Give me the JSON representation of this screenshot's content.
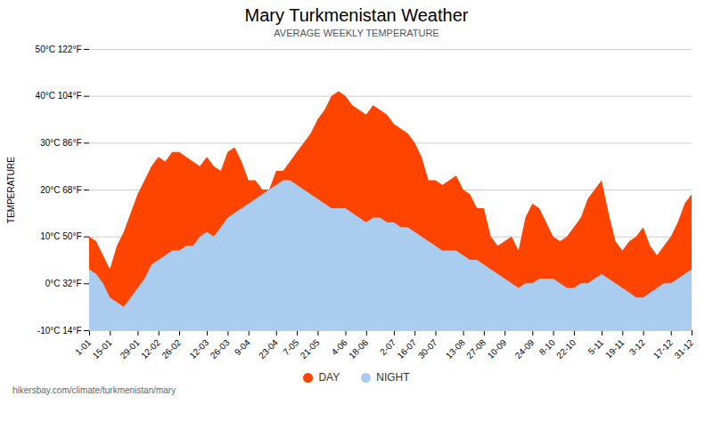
{
  "chart_data": {
    "type": "area",
    "title": "Mary Turkmenistan Weather",
    "subtitle": "AVERAGE WEEKLY TEMPERATURE",
    "ylabel": "TEMPERATURE",
    "footer": "hikersbay.com/climate/turkmenistan/mary",
    "categories": [
      "1-01",
      null,
      null,
      "15-01",
      null,
      null,
      null,
      "29-01",
      null,
      null,
      "12-02",
      null,
      null,
      "26-02",
      null,
      null,
      null,
      "12-03",
      null,
      null,
      "26-03",
      null,
      null,
      "9-04",
      null,
      null,
      null,
      "23-04",
      null,
      null,
      "7-05",
      null,
      null,
      "21-05",
      null,
      null,
      null,
      "4-06",
      null,
      null,
      "18-06",
      null,
      null,
      null,
      "2-07",
      null,
      null,
      "16-07",
      null,
      null,
      "30-07",
      null,
      null,
      null,
      "13-08",
      null,
      null,
      "27-08",
      null,
      null,
      "10-09",
      null,
      null,
      null,
      "24-09",
      null,
      null,
      "8-10",
      null,
      null,
      "22-10",
      null,
      null,
      null,
      "5-11",
      null,
      null,
      "19-11",
      null,
      null,
      "3-12",
      null,
      null,
      null,
      "17-12",
      null,
      null,
      "31-12"
    ],
    "series": [
      {
        "name": "DAY",
        "color": "#ff4400",
        "values": [
          10,
          9,
          6,
          3,
          8,
          11,
          15,
          19,
          22,
          25,
          27,
          26,
          28,
          28,
          27,
          26,
          25,
          27,
          25,
          24,
          28,
          29,
          26,
          22,
          22,
          20,
          20,
          24,
          24,
          26,
          28,
          30,
          32,
          35,
          37,
          40,
          41,
          40,
          38,
          37,
          36,
          38,
          37,
          36,
          34,
          33,
          32,
          30,
          27,
          22,
          22,
          21,
          22,
          23,
          20,
          19,
          16,
          16,
          10,
          8,
          9,
          10,
          7,
          14,
          17,
          16,
          13,
          10,
          9,
          10,
          12,
          14,
          18,
          20,
          22,
          15,
          9,
          7,
          9,
          10,
          12,
          8,
          6,
          8,
          10,
          13,
          17,
          19
        ]
      },
      {
        "name": "NIGHT",
        "color": "#aaccee",
        "values": [
          3,
          2,
          0,
          -3,
          -4,
          -5,
          -3,
          -1,
          1,
          4,
          5,
          6,
          7,
          7,
          8,
          8,
          10,
          11,
          10,
          12,
          14,
          15,
          16,
          17,
          18,
          19,
          20,
          21,
          22,
          22,
          21,
          20,
          19,
          18,
          17,
          16,
          16,
          16,
          15,
          14,
          13,
          14,
          14,
          13,
          13,
          12,
          12,
          11,
          10,
          9,
          8,
          7,
          7,
          7,
          6,
          5,
          5,
          4,
          3,
          2,
          1,
          0,
          -1,
          0,
          0,
          1,
          1,
          1,
          0,
          -1,
          -1,
          0,
          0,
          1,
          2,
          1,
          0,
          -1,
          -2,
          -3,
          -3,
          -2,
          -1,
          0,
          0,
          1,
          2,
          3
        ]
      }
    ],
    "ylim": [
      -10,
      50
    ],
    "yticks": [
      {
        "value": -10,
        "label": "-10°C 14°F"
      },
      {
        "value": 0,
        "label": "0°C 32°F"
      },
      {
        "value": 10,
        "label": "10°C 50°F"
      },
      {
        "value": 20,
        "label": "20°C 68°F"
      },
      {
        "value": 30,
        "label": "30°C 86°F"
      },
      {
        "value": 40,
        "label": "40°C 104°F"
      },
      {
        "value": 50,
        "label": "50°C 122°F"
      }
    ],
    "grid": true,
    "legend": "bottom"
  }
}
